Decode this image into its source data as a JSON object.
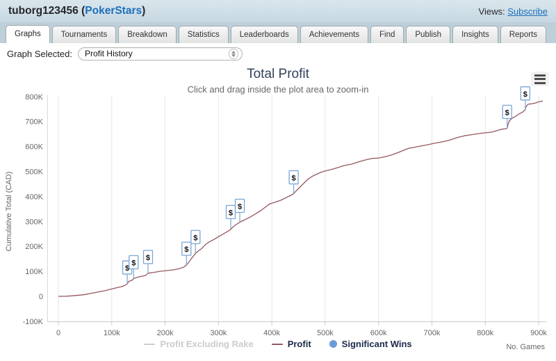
{
  "header": {
    "username": "tuborg123456",
    "open_paren": " (",
    "site": "PokerStars",
    "close_paren": ")",
    "views_label": "Views: ",
    "views_link": "Subscribe"
  },
  "tabs": [
    {
      "label": "Graphs",
      "active": true
    },
    {
      "label": "Tournaments",
      "active": false
    },
    {
      "label": "Breakdown",
      "active": false
    },
    {
      "label": "Statistics",
      "active": false
    },
    {
      "label": "Leaderboards",
      "active": false
    },
    {
      "label": "Achievements",
      "active": false
    },
    {
      "label": "Find",
      "active": false
    },
    {
      "label": "Publish",
      "active": false
    },
    {
      "label": "Insights",
      "active": false
    },
    {
      "label": "Reports",
      "active": false
    }
  ],
  "graph_selector": {
    "label": "Graph Selected:",
    "value": "Profit History"
  },
  "icons": {
    "chart_menu": "hamburger-menu-icon",
    "select_stepper": "stepper-up-down-icon",
    "flag_symbol": "$"
  },
  "colors": {
    "topbar_bg": "#cfdde6",
    "tabstrip_bg": "#bdd0da",
    "link_blue": "#1c6fbd",
    "title_navy": "#33425c",
    "profit_line": "#95575f",
    "flag_border": "#7aa5d6",
    "significant_wins_blue": "#6b9bd7",
    "disabled_legend": "#cccccc",
    "gridline": "#e6e6e6",
    "axis_text": "#666666"
  },
  "chart_data": {
    "type": "line",
    "title": "Total Profit",
    "subtitle": "Click and drag inside the plot area to zoom-in",
    "xlabel": "No. Games",
    "ylabel": "Cumulative Total (CAD)",
    "x_unit": "thousands of games",
    "y_unit": "thousands of CAD",
    "xlim": [
      0,
      912
    ],
    "ylim": [
      -100,
      800
    ],
    "grid": "vertical-only",
    "legend_position": "bottom-center",
    "xticks": [
      {
        "v": 0,
        "label": "0"
      },
      {
        "v": 100,
        "label": "100k"
      },
      {
        "v": 200,
        "label": "200k"
      },
      {
        "v": 300,
        "label": "300k"
      },
      {
        "v": 400,
        "label": "400k"
      },
      {
        "v": 500,
        "label": "500k"
      },
      {
        "v": 600,
        "label": "600k"
      },
      {
        "v": 700,
        "label": "700k"
      },
      {
        "v": 800,
        "label": "800k"
      },
      {
        "v": 900,
        "label": "900k"
      }
    ],
    "yticks": [
      {
        "v": -100,
        "label": "-100K"
      },
      {
        "v": 0,
        "label": "0"
      },
      {
        "v": 100,
        "label": "100K"
      },
      {
        "v": 200,
        "label": "200K"
      },
      {
        "v": 300,
        "label": "300K"
      },
      {
        "v": 400,
        "label": "400K"
      },
      {
        "v": 500,
        "label": "500K"
      },
      {
        "v": 600,
        "label": "600K"
      },
      {
        "v": 700,
        "label": "700K"
      },
      {
        "v": 800,
        "label": "800K"
      }
    ],
    "legend": [
      {
        "label": "Profit Excluding Rake",
        "marker": "line",
        "color": "#cccccc",
        "disabled": true
      },
      {
        "label": "Profit",
        "marker": "line",
        "color": "#95575f",
        "disabled": false
      },
      {
        "label": "Significant Wins",
        "marker": "circle",
        "color": "#6b9bd7",
        "disabled": false
      }
    ],
    "series": [
      {
        "name": "Profit",
        "color": "#95575f",
        "values": [
          [
            0,
            0
          ],
          [
            12,
            0
          ],
          [
            25,
            2
          ],
          [
            47,
            6
          ],
          [
            66,
            14
          ],
          [
            86,
            22
          ],
          [
            106,
            33
          ],
          [
            119,
            39
          ],
          [
            126,
            45
          ],
          [
            129,
            50
          ],
          [
            132,
            60
          ],
          [
            138,
            64
          ],
          [
            141,
            71
          ],
          [
            146,
            75
          ],
          [
            151,
            78
          ],
          [
            160,
            82
          ],
          [
            164,
            84
          ],
          [
            168,
            92
          ],
          [
            172,
            94
          ],
          [
            177,
            95
          ],
          [
            190,
            100
          ],
          [
            203,
            103
          ],
          [
            216,
            106
          ],
          [
            227,
            111
          ],
          [
            235,
            117
          ],
          [
            240,
            125
          ],
          [
            245,
            139
          ],
          [
            250,
            153
          ],
          [
            257,
            172
          ],
          [
            262,
            181
          ],
          [
            269,
            192
          ],
          [
            275,
            206
          ],
          [
            282,
            217
          ],
          [
            292,
            228
          ],
          [
            301,
            240
          ],
          [
            310,
            251
          ],
          [
            321,
            265
          ],
          [
            325,
            273
          ],
          [
            331,
            284
          ],
          [
            340,
            297
          ],
          [
            349,
            306
          ],
          [
            360,
            318
          ],
          [
            370,
            331
          ],
          [
            379,
            343
          ],
          [
            389,
            359
          ],
          [
            396,
            370
          ],
          [
            405,
            376
          ],
          [
            416,
            384
          ],
          [
            425,
            393
          ],
          [
            435,
            404
          ],
          [
            441,
            411
          ],
          [
            446,
            423
          ],
          [
            454,
            440
          ],
          [
            462,
            457
          ],
          [
            469,
            471
          ],
          [
            477,
            482
          ],
          [
            488,
            493
          ],
          [
            498,
            501
          ],
          [
            510,
            507
          ],
          [
            523,
            515
          ],
          [
            536,
            524
          ],
          [
            549,
            529
          ],
          [
            562,
            538
          ],
          [
            575,
            546
          ],
          [
            588,
            552
          ],
          [
            601,
            554
          ],
          [
            614,
            560
          ],
          [
            627,
            568
          ],
          [
            638,
            577
          ],
          [
            647,
            585
          ],
          [
            657,
            593
          ],
          [
            666,
            596
          ],
          [
            679,
            602
          ],
          [
            692,
            607
          ],
          [
            705,
            613
          ],
          [
            718,
            618
          ],
          [
            731,
            624
          ],
          [
            742,
            632
          ],
          [
            751,
            638
          ],
          [
            761,
            643
          ],
          [
            770,
            646
          ],
          [
            780,
            649
          ],
          [
            790,
            652
          ],
          [
            800,
            655
          ],
          [
            811,
            657
          ],
          [
            821,
            663
          ],
          [
            831,
            669
          ],
          [
            838,
            671
          ],
          [
            841,
            673
          ],
          [
            843,
            690
          ],
          [
            845,
            702
          ],
          [
            850,
            713
          ],
          [
            857,
            721
          ],
          [
            863,
            730
          ],
          [
            870,
            738
          ],
          [
            873,
            744
          ],
          [
            875,
            747
          ],
          [
            876,
            758
          ],
          [
            880,
            769
          ],
          [
            887,
            771
          ],
          [
            894,
            774
          ],
          [
            902,
            780
          ],
          [
            908,
            782
          ]
        ]
      }
    ],
    "significant_wins": {
      "flag_symbol": "$",
      "points": [
        [
          129,
          50
        ],
        [
          141,
          71
        ],
        [
          168,
          92
        ],
        [
          240,
          125
        ],
        [
          257,
          172
        ],
        [
          323,
          272
        ],
        [
          340,
          297
        ],
        [
          441,
          411
        ],
        [
          841,
          673
        ],
        [
          875,
          747
        ]
      ]
    }
  }
}
